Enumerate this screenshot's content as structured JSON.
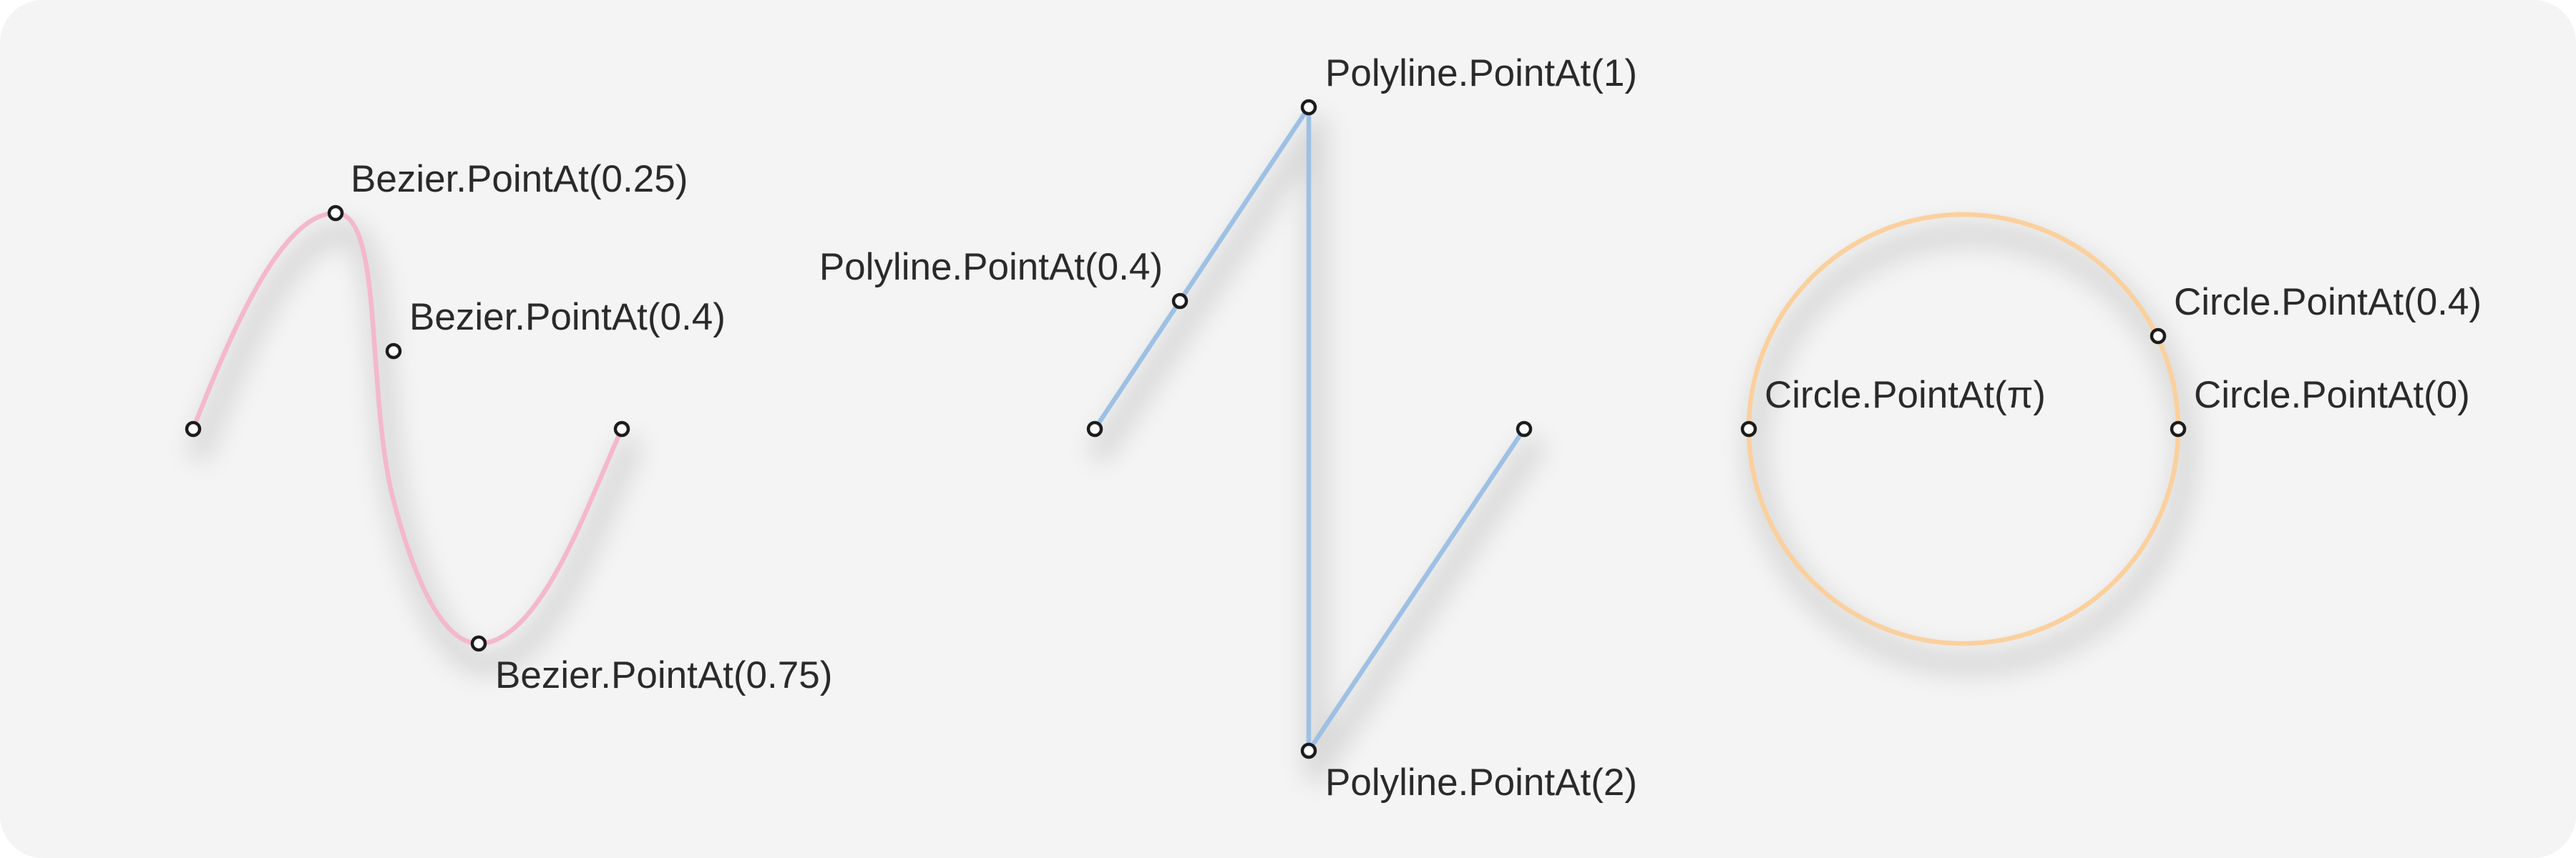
{
  "colors": {
    "bezier": "#f4b8cd",
    "polyline": "#9ec0e4",
    "circle": "#fbd09e",
    "background": "#f3f4f3"
  },
  "bezier": {
    "labels": {
      "p025": "Bezier.PointAt(0.25)",
      "p04": "Bezier.PointAt(0.4)",
      "p075": "Bezier.PointAt(0.75)"
    }
  },
  "polyline": {
    "labels": {
      "p1": "Polyline.PointAt(1)",
      "p04": "Polyline.PointAt(0.4)",
      "p2": "Polyline.PointAt(2)"
    }
  },
  "circle": {
    "labels": {
      "p04": "Circle.PointAt(0.4)",
      "p0": "Circle.PointAt(0)",
      "ppi": "Circle.PointAt(π)"
    }
  }
}
